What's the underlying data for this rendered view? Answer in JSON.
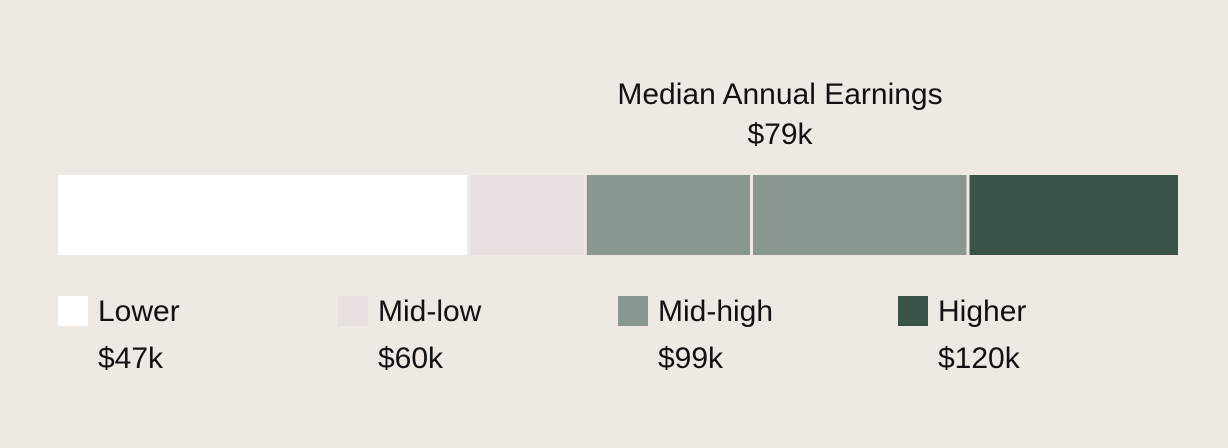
{
  "chart_data": {
    "type": "bar",
    "title": "Median Annual Earnings",
    "median_value": "$79k",
    "bar_extent": [
      0,
      120
    ],
    "segments": [
      {
        "name": "Lower",
        "start": 0,
        "end": 44.0,
        "color": "#ffffff"
      },
      {
        "name": "Mid-low",
        "start": 44.0,
        "end": 56.5,
        "color": "#e8e0de"
      },
      {
        "name": "Mid-high",
        "start": 56.5,
        "end": 74.3,
        "color": "#89978f"
      },
      {
        "name": "Mid-high",
        "start": 74.3,
        "end": 97.5,
        "color": "#89978f"
      },
      {
        "name": "Higher",
        "start": 97.5,
        "end": 120,
        "color": "#3a5347"
      }
    ],
    "legend": [
      {
        "label": "Lower",
        "value": "$47k",
        "color": "#ffffff"
      },
      {
        "label": "Mid-low",
        "value": "$60k",
        "color": "#e8e0de"
      },
      {
        "label": "Mid-high",
        "value": "$99k",
        "color": "#89978f"
      },
      {
        "label": "Higher",
        "value": "$120k",
        "color": "#3a5347"
      }
    ],
    "legend_placement": "bottom"
  }
}
